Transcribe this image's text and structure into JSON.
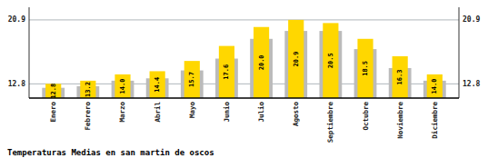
{
  "chart_data": {
    "type": "bar",
    "title": "Temperaturas Medias en san martin de oscos",
    "categories": [
      "Enero",
      "Febrero",
      "Marzo",
      "Abril",
      "Mayo",
      "Junio",
      "Julio",
      "Agosto",
      "Septiembre",
      "Octubre",
      "Noviembre",
      "Diciembre"
    ],
    "series": [
      {
        "color": "#BBBBBB",
        "values": [
          12.3,
          12.5,
          13.2,
          13.5,
          14.5,
          16.0,
          18.5,
          19.5,
          19.5,
          17.2,
          14.8,
          13.2
        ]
      },
      {
        "color": "#FFD700",
        "values": [
          12.8,
          13.2,
          14.0,
          14.4,
          15.7,
          17.6,
          20.0,
          20.9,
          20.5,
          18.5,
          16.3,
          14.0
        ],
        "data_labels": true,
        "value_labels": [
          "12.8",
          "13.2",
          "14.0",
          "14.4",
          "15.7",
          "17.6",
          "20.0",
          "20.9",
          "20.5",
          "18.5",
          "16.3",
          "14.0"
        ]
      }
    ],
    "ylim": [
      11.0,
      22.5
    ],
    "yticks": [
      12.8,
      20.9
    ],
    "y2lim": [
      11.0,
      22.5
    ],
    "y2ticks": [
      12.8,
      20.9
    ],
    "grid": true
  }
}
